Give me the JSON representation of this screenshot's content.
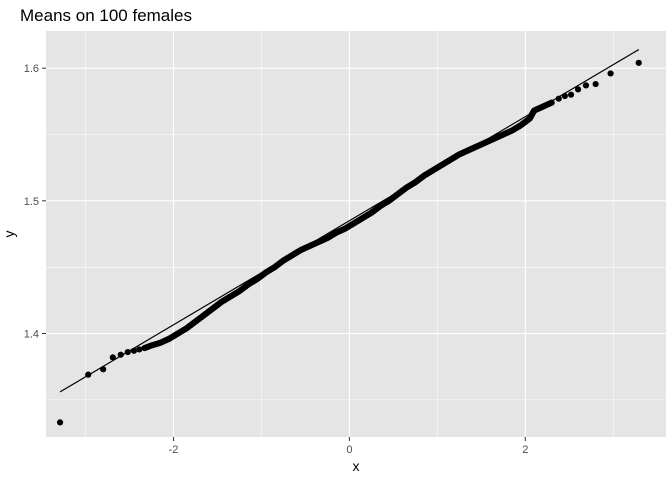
{
  "chart_data": {
    "type": "scatter",
    "title": "Means on 100 females",
    "xlabel": "x",
    "ylabel": "y",
    "xlim": [
      -3.45,
      3.6
    ],
    "ylim": [
      1.322,
      1.628
    ],
    "x_ticks": [
      -2,
      0,
      2
    ],
    "x_tick_labels": [
      "-2",
      "0",
      "2"
    ],
    "y_ticks": [
      1.4,
      1.5,
      1.6
    ],
    "y_tick_labels": [
      "1.4",
      "1.5",
      "1.6"
    ],
    "grid": true,
    "background_color": "#e5e5e5",
    "point_color": "#000000",
    "reference_line": {
      "x": [
        -3.29,
        3.29
      ],
      "y": [
        1.356,
        1.614
      ]
    },
    "points": [
      [
        -3.29,
        1.333
      ],
      [
        -2.97,
        1.369
      ],
      [
        -2.8,
        1.373
      ],
      [
        -2.69,
        1.382
      ],
      [
        -2.6,
        1.384
      ],
      [
        -2.52,
        1.386
      ],
      [
        -2.45,
        1.387
      ],
      [
        -2.39,
        1.388
      ],
      [
        -2.33,
        1.389
      ],
      [
        -2.25,
        1.391
      ],
      [
        -2.15,
        1.393
      ],
      [
        -2.05,
        1.396
      ],
      [
        -1.95,
        1.4
      ],
      [
        -1.85,
        1.404
      ],
      [
        -1.75,
        1.409
      ],
      [
        -1.65,
        1.414
      ],
      [
        -1.55,
        1.419
      ],
      [
        -1.45,
        1.424
      ],
      [
        -1.35,
        1.428
      ],
      [
        -1.25,
        1.432
      ],
      [
        -1.15,
        1.437
      ],
      [
        -1.05,
        1.441
      ],
      [
        -0.95,
        1.446
      ],
      [
        -0.85,
        1.45
      ],
      [
        -0.75,
        1.455
      ],
      [
        -0.65,
        1.459
      ],
      [
        -0.55,
        1.463
      ],
      [
        -0.45,
        1.466
      ],
      [
        -0.35,
        1.469
      ],
      [
        -0.25,
        1.472
      ],
      [
        -0.15,
        1.476
      ],
      [
        -0.05,
        1.479
      ],
      [
        0.05,
        1.483
      ],
      [
        0.15,
        1.487
      ],
      [
        0.25,
        1.491
      ],
      [
        0.35,
        1.496
      ],
      [
        0.45,
        1.5
      ],
      [
        0.55,
        1.505
      ],
      [
        0.65,
        1.51
      ],
      [
        0.75,
        1.514
      ],
      [
        0.85,
        1.519
      ],
      [
        0.95,
        1.523
      ],
      [
        1.05,
        1.527
      ],
      [
        1.15,
        1.531
      ],
      [
        1.25,
        1.535
      ],
      [
        1.35,
        1.538
      ],
      [
        1.45,
        1.541
      ],
      [
        1.55,
        1.544
      ],
      [
        1.65,
        1.547
      ],
      [
        1.75,
        1.55
      ],
      [
        1.85,
        1.553
      ],
      [
        1.95,
        1.557
      ],
      [
        2.05,
        1.562
      ],
      [
        2.1,
        1.568
      ],
      [
        2.2,
        1.571
      ],
      [
        2.3,
        1.574
      ],
      [
        2.38,
        1.577
      ],
      [
        2.45,
        1.579
      ],
      [
        2.52,
        1.58
      ],
      [
        2.6,
        1.584
      ],
      [
        2.69,
        1.587
      ],
      [
        2.8,
        1.588
      ],
      [
        2.97,
        1.596
      ],
      [
        3.29,
        1.604
      ]
    ]
  }
}
